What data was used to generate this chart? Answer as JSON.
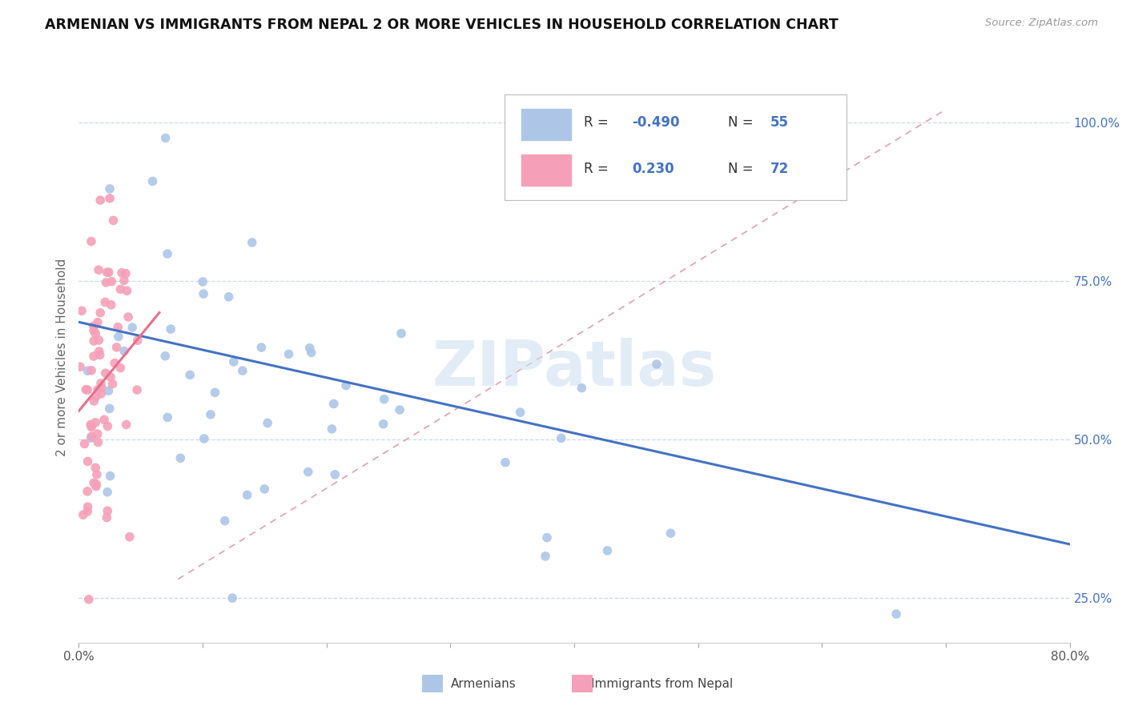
{
  "title": "ARMENIAN VS IMMIGRANTS FROM NEPAL 2 OR MORE VEHICLES IN HOUSEHOLD CORRELATION CHART",
  "source": "Source: ZipAtlas.com",
  "ylabel": "2 or more Vehicles in Household",
  "xlim": [
    0.0,
    0.8
  ],
  "ylim": [
    0.18,
    1.08
  ],
  "x_tick_vals": [
    0.0,
    0.1,
    0.2,
    0.3,
    0.4,
    0.5,
    0.6,
    0.7,
    0.8
  ],
  "x_tick_labels": [
    "0.0%",
    "",
    "",
    "",
    "",
    "",
    "",
    "",
    "80.0%"
  ],
  "y_tick_vals": [
    0.25,
    0.5,
    0.75,
    1.0
  ],
  "y_tick_labels": [
    "25.0%",
    "50.0%",
    "75.0%",
    "100.0%"
  ],
  "color_armenian": "#adc6e8",
  "color_nepal": "#f5a0b8",
  "color_line_armenian": "#4472c4",
  "color_line_nepal": "#e8708a",
  "color_dashed": "#e0a0b0",
  "watermark": "ZIPatlas",
  "watermark_color": "#d0e0f0",
  "legend_R_arm": "-0.490",
  "legend_N_arm": "55",
  "legend_R_nep": "0.230",
  "legend_N_nep": "72",
  "arm_line_x0": 0.0,
  "arm_line_x1": 0.8,
  "arm_line_y0": 0.685,
  "arm_line_y1": 0.335,
  "nep_line_x0": 0.0,
  "nep_line_x1": 0.065,
  "nep_line_y0": 0.545,
  "nep_line_y1": 0.7,
  "dash_line_x0": 0.08,
  "dash_line_x1": 0.7,
  "dash_line_y0": 0.28,
  "dash_line_y1": 1.02
}
